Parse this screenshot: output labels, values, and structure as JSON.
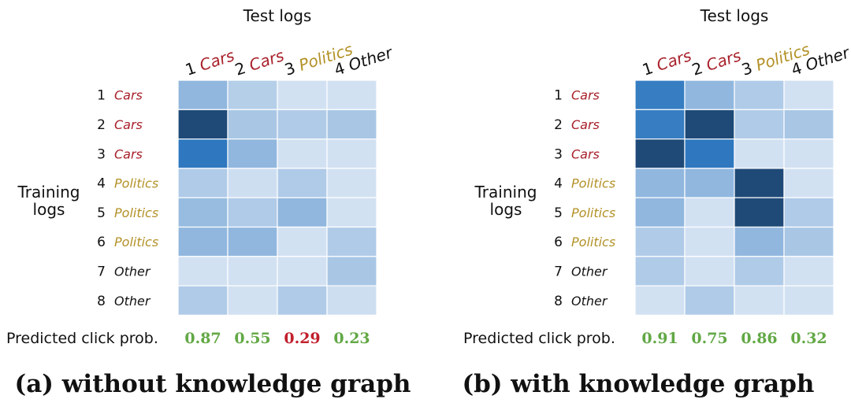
{
  "colors": {
    "Cars": "#a8202a",
    "Politics": "#b39126",
    "Other": "#111111",
    "prob_good": "#62a845",
    "prob_bad": "#c11f2c",
    "heat_low": "#e6eef8",
    "heat_high": "#1b3f66"
  },
  "chart_data": [
    {
      "type": "heatmap",
      "title": "Test logs",
      "ylabel": "Training logs",
      "caption": "(a) without knowledge graph",
      "prob_label": "Predicted click prob.",
      "columns": [
        {
          "num": "1",
          "cat": "Cars"
        },
        {
          "num": "2",
          "cat": "Cars"
        },
        {
          "num": "3",
          "cat": "Politics"
        },
        {
          "num": "4",
          "cat": "Other"
        }
      ],
      "rows": [
        {
          "num": "1",
          "cat": "Cars"
        },
        {
          "num": "2",
          "cat": "Cars"
        },
        {
          "num": "3",
          "cat": "Cars"
        },
        {
          "num": "4",
          "cat": "Politics"
        },
        {
          "num": "5",
          "cat": "Politics"
        },
        {
          "num": "6",
          "cat": "Politics"
        },
        {
          "num": "7",
          "cat": "Other"
        },
        {
          "num": "8",
          "cat": "Other"
        }
      ],
      "values": [
        [
          0.35,
          0.2,
          0.08,
          0.08
        ],
        [
          0.95,
          0.25,
          0.22,
          0.25
        ],
        [
          0.75,
          0.35,
          0.08,
          0.08
        ],
        [
          0.22,
          0.1,
          0.22,
          0.08
        ],
        [
          0.32,
          0.22,
          0.35,
          0.08
        ],
        [
          0.35,
          0.35,
          0.08,
          0.22
        ],
        [
          0.08,
          0.08,
          0.08,
          0.25
        ],
        [
          0.22,
          0.08,
          0.22,
          0.1
        ]
      ],
      "probs": [
        {
          "label": "0.87",
          "status": "good"
        },
        {
          "label": "0.55",
          "status": "good"
        },
        {
          "label": "0.29",
          "status": "bad"
        },
        {
          "label": "0.23",
          "status": "good"
        }
      ]
    },
    {
      "type": "heatmap",
      "title": "Test logs",
      "ylabel": "Training logs",
      "caption": "(b) with knowledge graph",
      "prob_label": "Predicted click prob.",
      "columns": [
        {
          "num": "1",
          "cat": "Cars"
        },
        {
          "num": "2",
          "cat": "Cars"
        },
        {
          "num": "3",
          "cat": "Politics"
        },
        {
          "num": "4",
          "cat": "Other"
        }
      ],
      "rows": [
        {
          "num": "1",
          "cat": "Cars"
        },
        {
          "num": "2",
          "cat": "Cars"
        },
        {
          "num": "3",
          "cat": "Cars"
        },
        {
          "num": "4",
          "cat": "Politics"
        },
        {
          "num": "5",
          "cat": "Politics"
        },
        {
          "num": "6",
          "cat": "Politics"
        },
        {
          "num": "7",
          "cat": "Other"
        },
        {
          "num": "8",
          "cat": "Other"
        }
      ],
      "values": [
        [
          0.72,
          0.35,
          0.22,
          0.08
        ],
        [
          0.72,
          0.95,
          0.22,
          0.25
        ],
        [
          0.95,
          0.75,
          0.08,
          0.08
        ],
        [
          0.35,
          0.35,
          0.95,
          0.08
        ],
        [
          0.35,
          0.08,
          0.95,
          0.22
        ],
        [
          0.22,
          0.08,
          0.35,
          0.25
        ],
        [
          0.22,
          0.08,
          0.22,
          0.08
        ],
        [
          0.08,
          0.22,
          0.08,
          0.08
        ]
      ],
      "probs": [
        {
          "label": "0.91",
          "status": "good"
        },
        {
          "label": "0.75",
          "status": "good"
        },
        {
          "label": "0.86",
          "status": "good"
        },
        {
          "label": "0.32",
          "status": "good"
        }
      ]
    }
  ]
}
